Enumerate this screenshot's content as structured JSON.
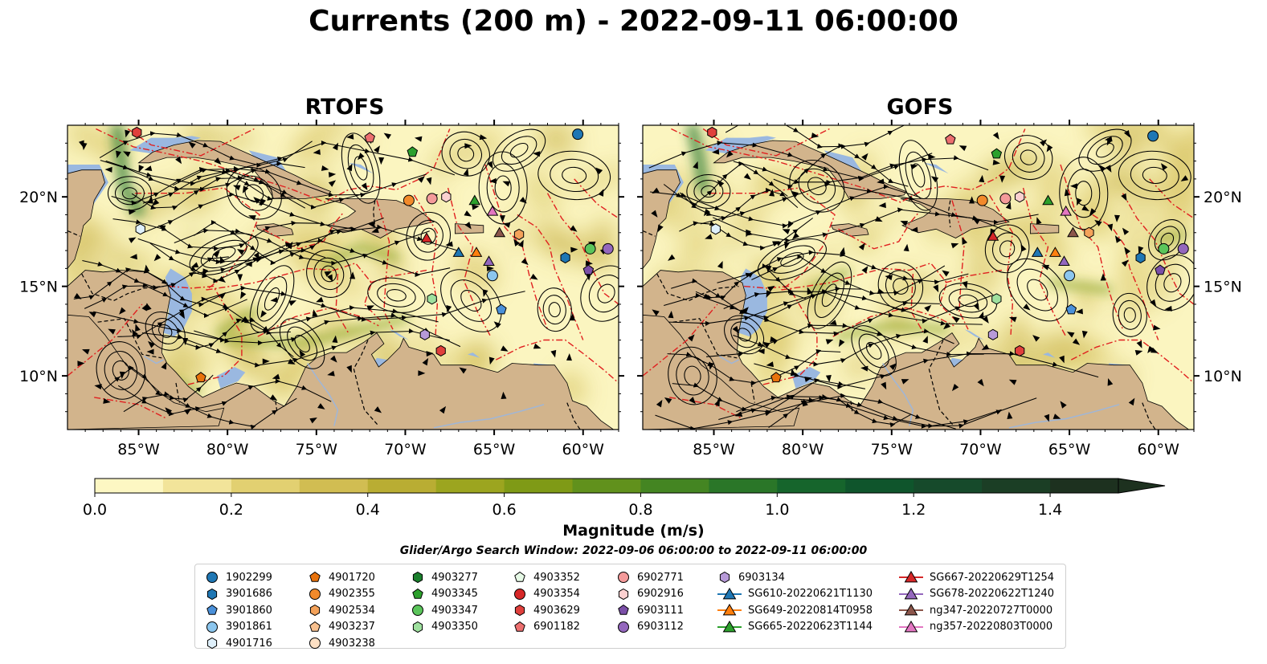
{
  "title": "Currents (200 m) - 2022-09-11 06:00:00",
  "colors": {
    "land": "#d2b48c",
    "water_shallow": "#9ab8e0",
    "ocean_low": "#fbf5c0",
    "ocean_mid": "#d6c260",
    "ocean_high": "#2e7d32",
    "eez_boundary": "#e02020",
    "border": "#000000",
    "river": "#9fb6d8",
    "colorbar": [
      "#fdf7c3",
      "#f2e49a",
      "#e2d071",
      "#d1bd52",
      "#b9ad33",
      "#9ca51f",
      "#7f9a16",
      "#61911c",
      "#448522",
      "#2a7628",
      "#16652c",
      "#0f552c",
      "#164a2b",
      "#1b3e25",
      "#1d311f"
    ]
  },
  "chart_data": [
    {
      "type": "streamplot",
      "panel": "RTOFS",
      "xlim": [
        -89,
        -58
      ],
      "ylim": [
        7,
        24
      ],
      "xticks": [
        -85,
        -80,
        -75,
        -70,
        -65,
        -60
      ],
      "yticks": [
        10,
        15,
        20
      ],
      "xticklabels": [
        "85°W",
        "80°W",
        "75°W",
        "70°W",
        "65°W",
        "60°W"
      ],
      "yticklabels": [
        "10°N",
        "15°N",
        "20°N"
      ]
    },
    {
      "type": "streamplot",
      "panel": "GOFS",
      "xlim": [
        -89,
        -58
      ],
      "ylim": [
        7,
        24
      ],
      "xticks": [
        -85,
        -80,
        -75,
        -70,
        -65,
        -60
      ],
      "yticks": [
        10,
        15,
        20
      ],
      "xticklabels": [
        "85°W",
        "80°W",
        "75°W",
        "70°W",
        "65°W",
        "60°W"
      ],
      "yticklabels": [
        "10°N",
        "15°N",
        "20°N"
      ]
    }
  ],
  "panels": {
    "left_title": "RTOFS",
    "right_title": "GOFS"
  },
  "colorbar": {
    "label": "Magnitude (m/s)",
    "min": 0.0,
    "max": 1.5,
    "step": 0.1,
    "extend": "max",
    "ticks": [
      0.0,
      0.2,
      0.4,
      0.6,
      0.8,
      1.0,
      1.2,
      1.4
    ],
    "tick_labels": [
      "0.0",
      "0.2",
      "0.4",
      "0.6",
      "0.8",
      "1.0",
      "1.2",
      "1.4"
    ]
  },
  "search_window": "Glider/Argo Search Window: 2022-09-06 06:00:00 to 2022-09-11 06:00:00",
  "legend": {
    "columns": [
      [
        {
          "label": "1902299",
          "marker": "circle",
          "color": "#1f77b4"
        },
        {
          "label": "3901686",
          "marker": "hexagon",
          "color": "#1f77b4"
        },
        {
          "label": "3901860",
          "marker": "pentagon",
          "color": "#4a90d9"
        },
        {
          "label": "3901861",
          "marker": "circle",
          "color": "#8cc6ee"
        },
        {
          "label": "4901716",
          "marker": "hexagon",
          "color": "#dff0fb"
        }
      ],
      [
        {
          "label": "4901720",
          "marker": "pentagon",
          "color": "#e8720c"
        },
        {
          "label": "4902355",
          "marker": "circle",
          "color": "#f28a2b"
        },
        {
          "label": "4902534",
          "marker": "hexagon",
          "color": "#f4a25a"
        },
        {
          "label": "4903237",
          "marker": "pentagon",
          "color": "#f7c08f"
        },
        {
          "label": "4903238",
          "marker": "circle",
          "color": "#fde0c4"
        }
      ],
      [
        {
          "label": "4903277",
          "marker": "hexagon",
          "color": "#1a7f2c"
        },
        {
          "label": "4903345",
          "marker": "pentagon",
          "color": "#2ca02c"
        },
        {
          "label": "4903347",
          "marker": "circle",
          "color": "#5bc55b"
        },
        {
          "label": "4903350",
          "marker": "hexagon",
          "color": "#9ee09e"
        }
      ],
      [
        {
          "label": "4903352",
          "marker": "pentagon",
          "color": "#e6f9e6"
        },
        {
          "label": "4903354",
          "marker": "circle",
          "color": "#d62728"
        },
        {
          "label": "4903629",
          "marker": "hexagon",
          "color": "#e0403c"
        },
        {
          "label": "6901182",
          "marker": "pentagon",
          "color": "#ec6f6f"
        }
      ],
      [
        {
          "label": "6902771",
          "marker": "circle",
          "color": "#f49a9a"
        },
        {
          "label": "6902916",
          "marker": "hexagon",
          "color": "#fbd0d0"
        },
        {
          "label": "6903111",
          "marker": "pentagon",
          "color": "#7b4fa8"
        },
        {
          "label": "6903112",
          "marker": "circle",
          "color": "#9467bd"
        }
      ],
      [
        {
          "label": "6903134",
          "marker": "hexagon",
          "color": "#b79ad8"
        },
        {
          "label": "SG610-20220621T1130",
          "marker": "triangle",
          "color": "#1f77b4",
          "line": true
        },
        {
          "label": "SG649-20220814T0958",
          "marker": "triangle",
          "color": "#ff7f0e",
          "line": true
        },
        {
          "label": "SG665-20220623T1144",
          "marker": "triangle",
          "color": "#2ca02c",
          "line": true
        }
      ],
      [
        {
          "label": "SG667-20220629T1254",
          "marker": "triangle",
          "color": "#d62728",
          "line": true
        },
        {
          "label": "SG678-20220622T1240",
          "marker": "triangle",
          "color": "#9467bd",
          "line": true
        },
        {
          "label": "ng347-20220727T0000",
          "marker": "triangle",
          "color": "#8c564b",
          "line": true
        },
        {
          "label": "ng357-20220803T0000",
          "marker": "triangle",
          "color": "#e377c2",
          "line": true
        }
      ]
    ]
  },
  "markers": {
    "RTOFS": [
      {
        "lon": -85.1,
        "lat": 23.6,
        "marker": "hexagon",
        "color": "#e0403c"
      },
      {
        "lon": -60.3,
        "lat": 23.5,
        "marker": "circle",
        "color": "#1f77b4"
      },
      {
        "lon": -72.0,
        "lat": 23.3,
        "marker": "pentagon",
        "color": "#ec6f6f"
      },
      {
        "lon": -69.6,
        "lat": 22.5,
        "marker": "pentagon",
        "color": "#2ca02c"
      },
      {
        "lon": -69.8,
        "lat": 19.8,
        "marker": "circle",
        "color": "#f28a2b"
      },
      {
        "lon": -68.5,
        "lat": 19.9,
        "marker": "circle",
        "color": "#f49a9a"
      },
      {
        "lon": -67.7,
        "lat": 20.0,
        "marker": "hexagon",
        "color": "#fbd0d0"
      },
      {
        "lon": -66.1,
        "lat": 19.8,
        "marker": "triangle",
        "color": "#2ca02c"
      },
      {
        "lon": -65.1,
        "lat": 19.2,
        "marker": "triangle",
        "color": "#e377c2"
      },
      {
        "lon": -84.9,
        "lat": 18.2,
        "marker": "hexagon",
        "color": "#dff0fb"
      },
      {
        "lon": -64.7,
        "lat": 18.0,
        "marker": "triangle",
        "color": "#8c564b"
      },
      {
        "lon": -63.6,
        "lat": 17.9,
        "marker": "hexagon",
        "color": "#f4a25a"
      },
      {
        "lon": -68.8,
        "lat": 17.7,
        "marker": "triangle",
        "color": "#d62728"
      },
      {
        "lon": -59.6,
        "lat": 17.1,
        "marker": "circle",
        "color": "#5bc55b"
      },
      {
        "lon": -58.6,
        "lat": 17.1,
        "marker": "circle",
        "color": "#9467bd"
      },
      {
        "lon": -67.0,
        "lat": 16.9,
        "marker": "triangle",
        "color": "#1f77b4"
      },
      {
        "lon": -66.0,
        "lat": 16.9,
        "marker": "triangle",
        "color": "#ff7f0e"
      },
      {
        "lon": -65.3,
        "lat": 16.4,
        "marker": "triangle",
        "color": "#9467bd"
      },
      {
        "lon": -61.0,
        "lat": 16.6,
        "marker": "hexagon",
        "color": "#1f77b4"
      },
      {
        "lon": -59.7,
        "lat": 15.9,
        "marker": "pentagon",
        "color": "#7b4fa8"
      },
      {
        "lon": -65.1,
        "lat": 15.6,
        "marker": "circle",
        "color": "#8cc6ee"
      },
      {
        "lon": -68.5,
        "lat": 14.3,
        "marker": "hexagon",
        "color": "#9ee09e"
      },
      {
        "lon": -64.6,
        "lat": 13.7,
        "marker": "pentagon",
        "color": "#4a90d9"
      },
      {
        "lon": -68.9,
        "lat": 12.3,
        "marker": "hexagon",
        "color": "#b79ad8"
      },
      {
        "lon": -68.0,
        "lat": 11.4,
        "marker": "hexagon",
        "color": "#e0403c"
      },
      {
        "lon": -81.5,
        "lat": 9.9,
        "marker": "pentagon",
        "color": "#e8720c"
      }
    ],
    "GOFS": [
      {
        "lon": -85.1,
        "lat": 23.6,
        "marker": "hexagon",
        "color": "#e0403c"
      },
      {
        "lon": -60.3,
        "lat": 23.4,
        "marker": "circle",
        "color": "#1f77b4"
      },
      {
        "lon": -71.7,
        "lat": 23.2,
        "marker": "pentagon",
        "color": "#ec6f6f"
      },
      {
        "lon": -69.1,
        "lat": 22.4,
        "marker": "pentagon",
        "color": "#2ca02c"
      },
      {
        "lon": -69.9,
        "lat": 19.8,
        "marker": "circle",
        "color": "#f28a2b"
      },
      {
        "lon": -68.6,
        "lat": 19.9,
        "marker": "circle",
        "color": "#f49a9a"
      },
      {
        "lon": -67.8,
        "lat": 20.0,
        "marker": "hexagon",
        "color": "#fbd0d0"
      },
      {
        "lon": -66.2,
        "lat": 19.8,
        "marker": "triangle",
        "color": "#2ca02c"
      },
      {
        "lon": -65.2,
        "lat": 19.2,
        "marker": "triangle",
        "color": "#e377c2"
      },
      {
        "lon": -84.9,
        "lat": 18.2,
        "marker": "hexagon",
        "color": "#dff0fb"
      },
      {
        "lon": -64.8,
        "lat": 18.0,
        "marker": "triangle",
        "color": "#8c564b"
      },
      {
        "lon": -63.9,
        "lat": 18.0,
        "marker": "hexagon",
        "color": "#f4a25a"
      },
      {
        "lon": -69.3,
        "lat": 17.8,
        "marker": "triangle",
        "color": "#d62728"
      },
      {
        "lon": -59.7,
        "lat": 17.1,
        "marker": "circle",
        "color": "#5bc55b"
      },
      {
        "lon": -58.6,
        "lat": 17.1,
        "marker": "circle",
        "color": "#9467bd"
      },
      {
        "lon": -66.8,
        "lat": 16.9,
        "marker": "triangle",
        "color": "#1f77b4"
      },
      {
        "lon": -65.8,
        "lat": 16.9,
        "marker": "triangle",
        "color": "#ff7f0e"
      },
      {
        "lon": -65.3,
        "lat": 16.4,
        "marker": "triangle",
        "color": "#9467bd"
      },
      {
        "lon": -61.0,
        "lat": 16.6,
        "marker": "hexagon",
        "color": "#1f77b4"
      },
      {
        "lon": -59.9,
        "lat": 15.9,
        "marker": "pentagon",
        "color": "#7b4fa8"
      },
      {
        "lon": -65.0,
        "lat": 15.6,
        "marker": "circle",
        "color": "#8cc6ee"
      },
      {
        "lon": -69.1,
        "lat": 14.3,
        "marker": "hexagon",
        "color": "#9ee09e"
      },
      {
        "lon": -64.9,
        "lat": 13.7,
        "marker": "pentagon",
        "color": "#4a90d9"
      },
      {
        "lon": -69.3,
        "lat": 12.3,
        "marker": "hexagon",
        "color": "#b79ad8"
      },
      {
        "lon": -67.8,
        "lat": 11.4,
        "marker": "hexagon",
        "color": "#e0403c"
      },
      {
        "lon": -81.5,
        "lat": 9.9,
        "marker": "pentagon",
        "color": "#e8720c"
      }
    ]
  }
}
